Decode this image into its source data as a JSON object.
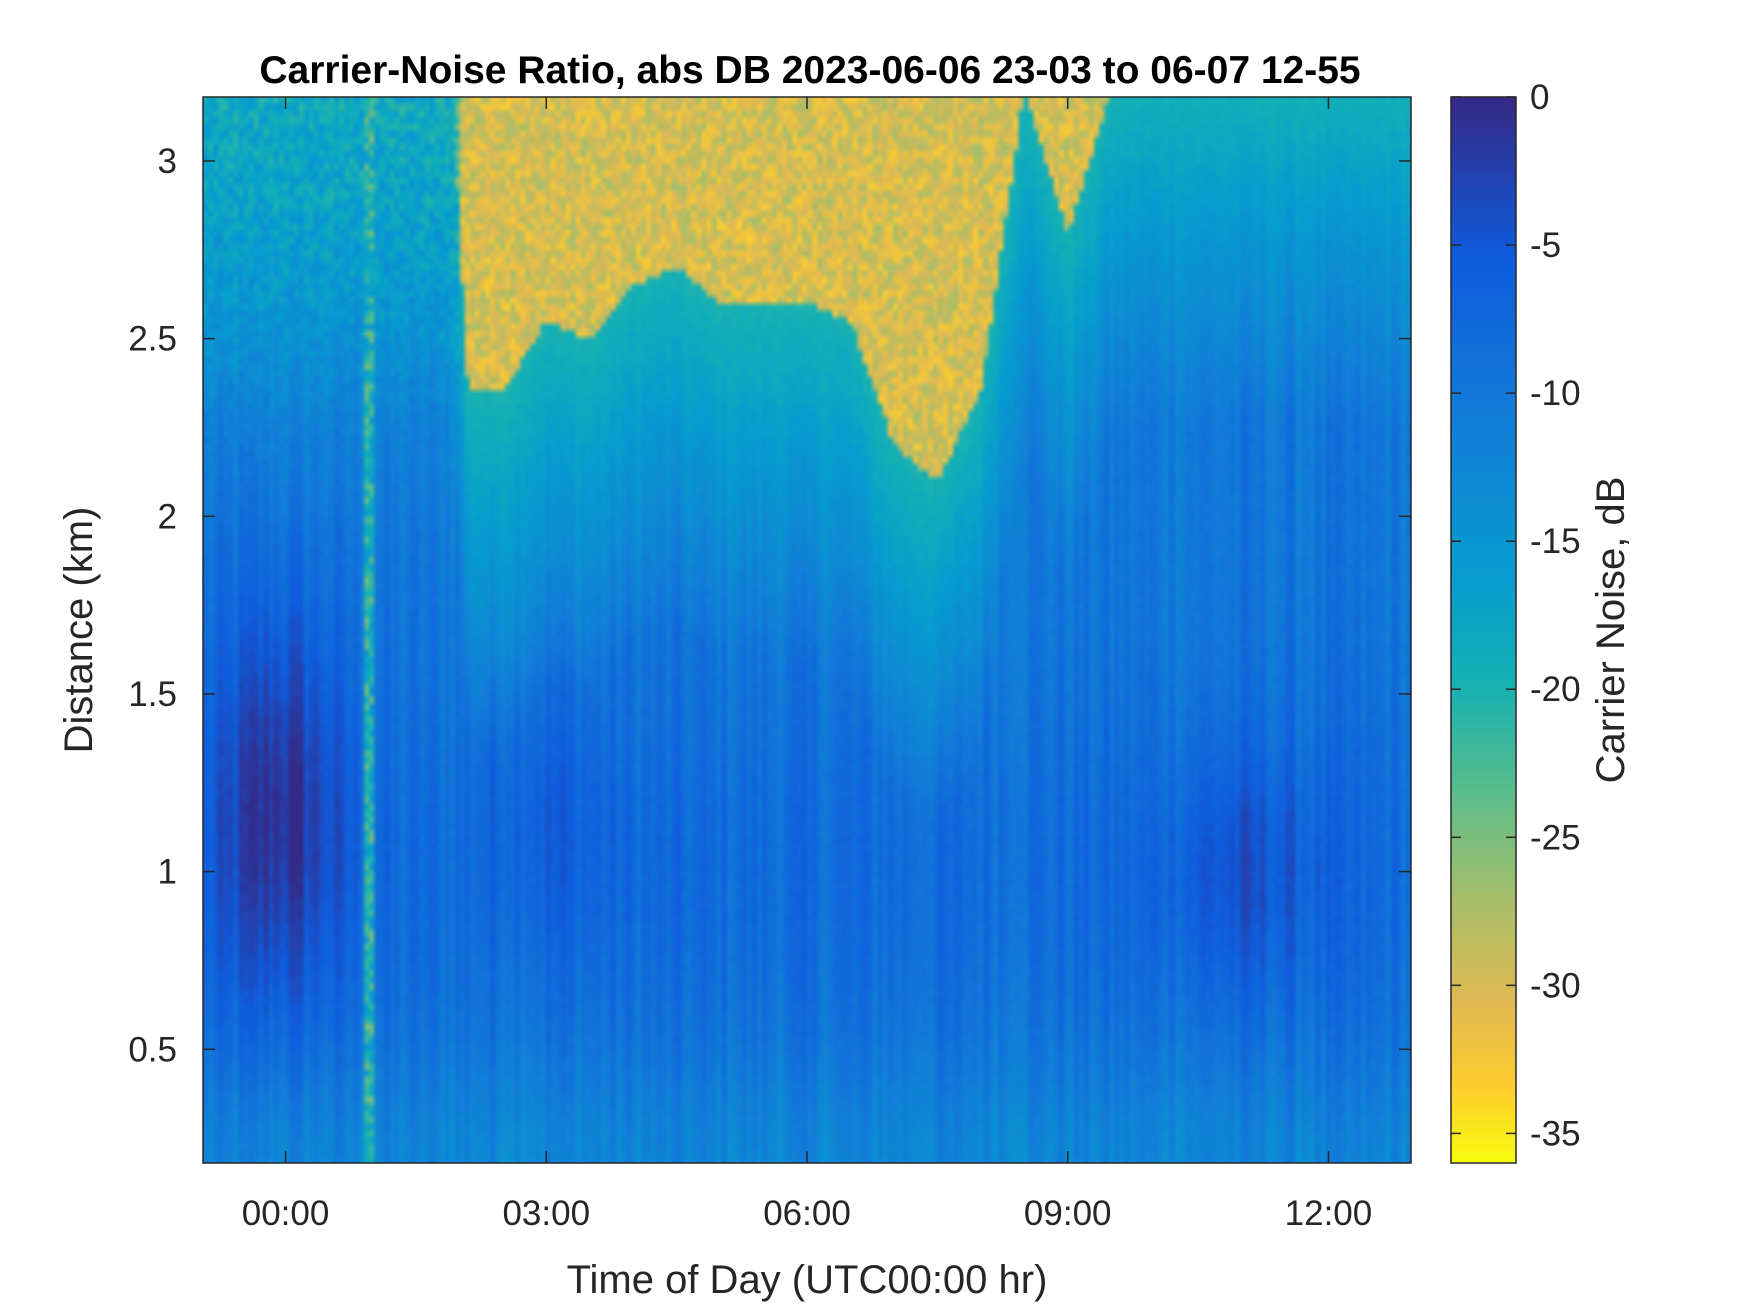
{
  "chart_data": {
    "type": "heatmap",
    "title": "Carrier-Noise Ratio, abs DB 2023-06-06 23-03 to 06-07 12-55",
    "xlabel": "Time of Day (UTC00:00 hr)",
    "ylabel": "Distance (km)",
    "colorbar_label": "Carrier Noise, dB",
    "colormap": "parula (reversed: 0 dB dark blue, -35 dB yellow)",
    "x_range_hours": [
      -0.95,
      12.95
    ],
    "y_range_km": [
      0.18,
      3.18
    ],
    "color_range_db": [
      -36,
      0
    ],
    "x_ticks": [
      {
        "value": 0,
        "label": "00:00"
      },
      {
        "value": 3,
        "label": "03:00"
      },
      {
        "value": 6,
        "label": "06:00"
      },
      {
        "value": 9,
        "label": "09:00"
      },
      {
        "value": 12,
        "label": "12:00"
      }
    ],
    "y_ticks": [
      {
        "value": 0.5,
        "label": "0.5"
      },
      {
        "value": 1,
        "label": "1"
      },
      {
        "value": 1.5,
        "label": "1.5"
      },
      {
        "value": 2,
        "label": "2"
      },
      {
        "value": 2.5,
        "label": "2.5"
      },
      {
        "value": 3,
        "label": "3"
      }
    ],
    "colorbar_ticks": [
      {
        "value": 0,
        "label": "0"
      },
      {
        "value": -5,
        "label": "-5"
      },
      {
        "value": -10,
        "label": "-10"
      },
      {
        "value": -15,
        "label": "-15"
      },
      {
        "value": -20,
        "label": "-20"
      },
      {
        "value": -25,
        "label": "-25"
      },
      {
        "value": -30,
        "label": "-30"
      },
      {
        "value": -35,
        "label": "-35"
      }
    ],
    "noise_floor_boundary": {
      "description": "approximate lower edge (km) of the yellow noise-floor region vs. time (hours)",
      "time_hours": [
        -0.95,
        1.0,
        1.9,
        2.1,
        2.5,
        3.0,
        3.5,
        4.0,
        4.5,
        5.0,
        6.0,
        6.5,
        7.0,
        7.5,
        8.0,
        8.5,
        9.0,
        9.5,
        10.0,
        11.0,
        12.0,
        12.95
      ],
      "distance_km": [
        3.25,
        3.25,
        3.25,
        2.35,
        2.35,
        2.55,
        2.5,
        2.65,
        2.7,
        2.6,
        2.6,
        2.55,
        2.2,
        2.1,
        2.35,
        3.2,
        2.8,
        3.2,
        3.25,
        3.25,
        3.25,
        3.25
      ]
    },
    "features": {
      "strongest_signal_db": -2,
      "strongest_signal_time_hours": [
        -0.95,
        0.8
      ],
      "strongest_signal_distance_km": [
        0.7,
        1.7
      ],
      "near_surface_db": -12,
      "mid_range_db": -10,
      "noise_floor_db": -30,
      "transition_db": -20
    },
    "grid": "off",
    "colorbar_position": "right"
  }
}
